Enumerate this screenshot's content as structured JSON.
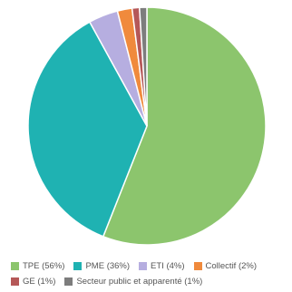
{
  "chart_data": {
    "type": "pie",
    "title": "",
    "slices": [
      {
        "label": "TPE (56%)",
        "value": 56,
        "color": "#8cc56d"
      },
      {
        "label": "PME (36%)",
        "value": 36,
        "color": "#1fb2b2"
      },
      {
        "label": "ETI (4%)",
        "value": 4,
        "color": "#b6aee0"
      },
      {
        "label": "Collectif (2%)",
        "value": 2,
        "color": "#f08a3c"
      },
      {
        "label": "GE (1%)",
        "value": 1,
        "color": "#b55858"
      },
      {
        "label": "Secteur public et apparenté (1%)",
        "value": 1,
        "color": "#7d7d7d"
      }
    ],
    "legend_position": "bottom"
  }
}
